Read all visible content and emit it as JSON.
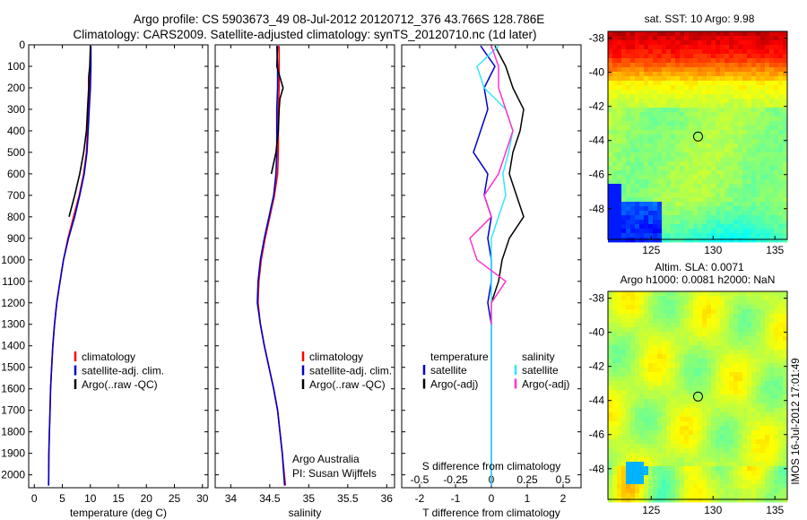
{
  "header": {
    "line1": "Argo profile: CS 5903673_49 08-Jul-2012 20120712_376 43.766S 128.786E",
    "line2": "Climatology: CARS2009. Satellite-adjusted climatology: synTS_20120710.nc (1d later)"
  },
  "side_stamp": "IMOS 16-Jul-2012 17:01:49",
  "colors": {
    "climatology": "#ff0000",
    "satellite": "#0000cc",
    "argo": "#000000",
    "sal_satellite": "#33e6ff",
    "sal_argo": "#ff33cc"
  },
  "chart_data": [
    {
      "id": "temperature",
      "type": "line",
      "xlabel": "temperature (deg C)",
      "xlim": [
        -1,
        31
      ],
      "xticks": [
        0,
        5,
        10,
        15,
        20,
        25,
        30
      ],
      "ylim": [
        2060,
        0
      ],
      "yticks": [
        0,
        100,
        200,
        300,
        400,
        500,
        600,
        700,
        800,
        900,
        1000,
        1100,
        1200,
        1300,
        1400,
        1500,
        1600,
        1700,
        1800,
        1900,
        2000
      ],
      "legend": [
        "climatology",
        "satellite-adj. clim.",
        "Argo(..raw -QC)"
      ],
      "series": [
        {
          "name": "climatology",
          "color": "#ff0000",
          "x": [
            10.0,
            10.0,
            9.9,
            9.7,
            9.5,
            9.3,
            8.8,
            8.0,
            7.0,
            6.0,
            5.2,
            4.6,
            4.0,
            3.6,
            3.3,
            3.1,
            2.9,
            2.8,
            2.7,
            2.6,
            2.55
          ],
          "y": [
            5,
            100,
            200,
            300,
            400,
            500,
            600,
            700,
            800,
            900,
            1000,
            1100,
            1200,
            1300,
            1400,
            1500,
            1600,
            1700,
            1800,
            1900,
            2050
          ]
        },
        {
          "name": "satellite-adj. clim.",
          "color": "#0000cc",
          "x": [
            10.1,
            10.1,
            10.0,
            9.8,
            9.6,
            9.4,
            8.9,
            8.1,
            7.2,
            6.1,
            5.2,
            4.6,
            4.0,
            3.6,
            3.3,
            3.1,
            2.9,
            2.8,
            2.7,
            2.6,
            2.55
          ],
          "y": [
            5,
            100,
            200,
            300,
            400,
            500,
            600,
            700,
            800,
            900,
            1000,
            1100,
            1200,
            1300,
            1400,
            1500,
            1600,
            1700,
            1800,
            1900,
            2050
          ]
        },
        {
          "name": "Argo(..raw -QC)",
          "color": "#000000",
          "x": [
            10.0,
            9.9,
            9.7,
            9.7,
            9.5,
            9.3,
            8.8,
            8.1,
            7.2,
            6.2
          ],
          "y": [
            5,
            100,
            150,
            200,
            300,
            400,
            500,
            600,
            700,
            800
          ]
        }
      ]
    },
    {
      "id": "salinity",
      "type": "line",
      "xlabel": "salinity",
      "xlim": [
        33.8,
        36.1
      ],
      "xticks": [
        34,
        34.5,
        35,
        35.5,
        36
      ],
      "ylim": [
        2060,
        0
      ],
      "legend": [
        "climatology",
        "satellite-adj. clim.",
        "Argo(..raw -QC)"
      ],
      "annotation": [
        "Argo Australia",
        "PI: Susan Wijffels"
      ],
      "series": [
        {
          "name": "climatology",
          "color": "#ff0000",
          "x": [
            34.62,
            34.62,
            34.62,
            34.61,
            34.61,
            34.61,
            34.6,
            34.56,
            34.5,
            34.44,
            34.39,
            34.36,
            34.35,
            34.38,
            34.43,
            34.49,
            34.55,
            34.6,
            34.63,
            34.66,
            34.7
          ],
          "y": [
            5,
            100,
            200,
            300,
            400,
            500,
            600,
            700,
            800,
            900,
            1000,
            1100,
            1200,
            1300,
            1400,
            1500,
            1600,
            1700,
            1800,
            1900,
            2050
          ]
        },
        {
          "name": "satellite-adj. clim.",
          "color": "#0000cc",
          "x": [
            34.59,
            34.6,
            34.6,
            34.59,
            34.59,
            34.59,
            34.58,
            34.55,
            34.49,
            34.43,
            34.38,
            34.35,
            34.34,
            34.38,
            34.43,
            34.49,
            34.55,
            34.6,
            34.63,
            34.66,
            34.69
          ],
          "y": [
            5,
            100,
            200,
            300,
            400,
            500,
            600,
            700,
            800,
            900,
            1000,
            1100,
            1200,
            1300,
            1400,
            1500,
            1600,
            1700,
            1800,
            1900,
            2050
          ]
        },
        {
          "name": "Argo(..raw -QC)",
          "color": "#000000",
          "x": [
            34.6,
            34.59,
            34.63,
            34.67,
            34.63,
            34.62,
            34.61,
            34.58,
            34.52
          ],
          "y": [
            5,
            100,
            150,
            200,
            250,
            300,
            400,
            500,
            600
          ]
        }
      ]
    },
    {
      "id": "difference",
      "type": "line",
      "xlabel": "T difference from climatology",
      "top_label": "S difference from climatology",
      "xlim": [
        -2.5,
        2.5
      ],
      "xticks": [
        -2,
        -1,
        0,
        1,
        2
      ],
      "top_ticks": [
        "-0.5",
        "-0.25",
        "0",
        "0.25",
        "0.5"
      ],
      "ylim": [
        2060,
        0
      ],
      "legend_left_title": "temperature",
      "legend_right_title": "salinity",
      "legend_left": [
        "satellite",
        "Argo(-adj)"
      ],
      "legend_right": [
        "satellite",
        "Argo(-adj)"
      ],
      "series": [
        {
          "name": "T satellite",
          "color": "#0000cc",
          "x": [
            -0.3,
            0.1,
            -0.2,
            -0.1,
            -0.3,
            -0.5,
            -0.1,
            -0.2,
            0.0,
            -0.1,
            0.0,
            0.0,
            -0.1,
            0.0,
            0.0,
            0.0,
            0.0,
            0.0,
            0.0,
            0.0,
            0.0
          ],
          "y": [
            5,
            100,
            200,
            300,
            400,
            500,
            600,
            700,
            800,
            900,
            1000,
            1100,
            1200,
            1300,
            1400,
            1500,
            1600,
            1700,
            1800,
            1900,
            2050
          ]
        },
        {
          "name": "T Argo(-adj)",
          "color": "#000000",
          "x": [
            0.1,
            0.4,
            0.6,
            0.9,
            0.8,
            0.6,
            0.5,
            0.7,
            0.9,
            0.5,
            0.3,
            0.2,
            0.0
          ],
          "y": [
            5,
            100,
            200,
            300,
            400,
            500,
            600,
            700,
            800,
            900,
            1000,
            1100,
            1200
          ]
        },
        {
          "name": "S satellite",
          "color": "#33e6ff",
          "x": [
            0.05,
            -0.1,
            -0.05,
            0.1,
            0.15,
            0.12,
            0.08,
            0.1,
            0.05,
            0.0,
            0.0,
            0.0,
            0.0,
            0.0,
            0.0,
            0.0,
            0.0,
            0.0,
            0.0,
            0.0,
            0.0
          ],
          "y": [
            5,
            100,
            200,
            300,
            400,
            500,
            600,
            700,
            800,
            900,
            1000,
            1100,
            1200,
            1300,
            1400,
            1500,
            1600,
            1700,
            1800,
            1900,
            2050
          ]
        },
        {
          "name": "S Argo(-adj)",
          "color": "#ff33cc",
          "x": [
            0.0,
            0.05,
            0.05,
            0.1,
            0.15,
            0.1,
            0.05,
            -0.05,
            0.0,
            -0.15,
            -0.1,
            0.1,
            0.0,
            0.0
          ],
          "y": [
            5,
            100,
            200,
            300,
            400,
            500,
            600,
            700,
            800,
            900,
            1000,
            1100,
            1200,
            1300
          ]
        }
      ]
    },
    {
      "id": "sst_map",
      "type": "heatmap",
      "title": "sat. SST: 10 Argo: 9.98",
      "xlim": [
        121.5,
        136
      ],
      "ylim": [
        -49.8,
        -37.6
      ],
      "xticks": [
        125,
        130,
        135
      ],
      "yticks": [
        -38,
        -40,
        -42,
        -44,
        -46,
        -48
      ],
      "marker": {
        "lon": 128.786,
        "lat": -43.766
      }
    },
    {
      "id": "sla_map",
      "type": "heatmap",
      "title_line1": "Altim. SLA: 0.0071",
      "title_line2": "Argo h1000: 0.0081 h2000: NaN",
      "xlim": [
        121.5,
        136
      ],
      "ylim": [
        -49.8,
        -37.6
      ],
      "xticks": [
        125,
        130,
        135
      ],
      "yticks": [
        -38,
        -40,
        -42,
        -44,
        -46,
        -48
      ],
      "marker": {
        "lon": 128.786,
        "lat": -43.766
      }
    }
  ]
}
